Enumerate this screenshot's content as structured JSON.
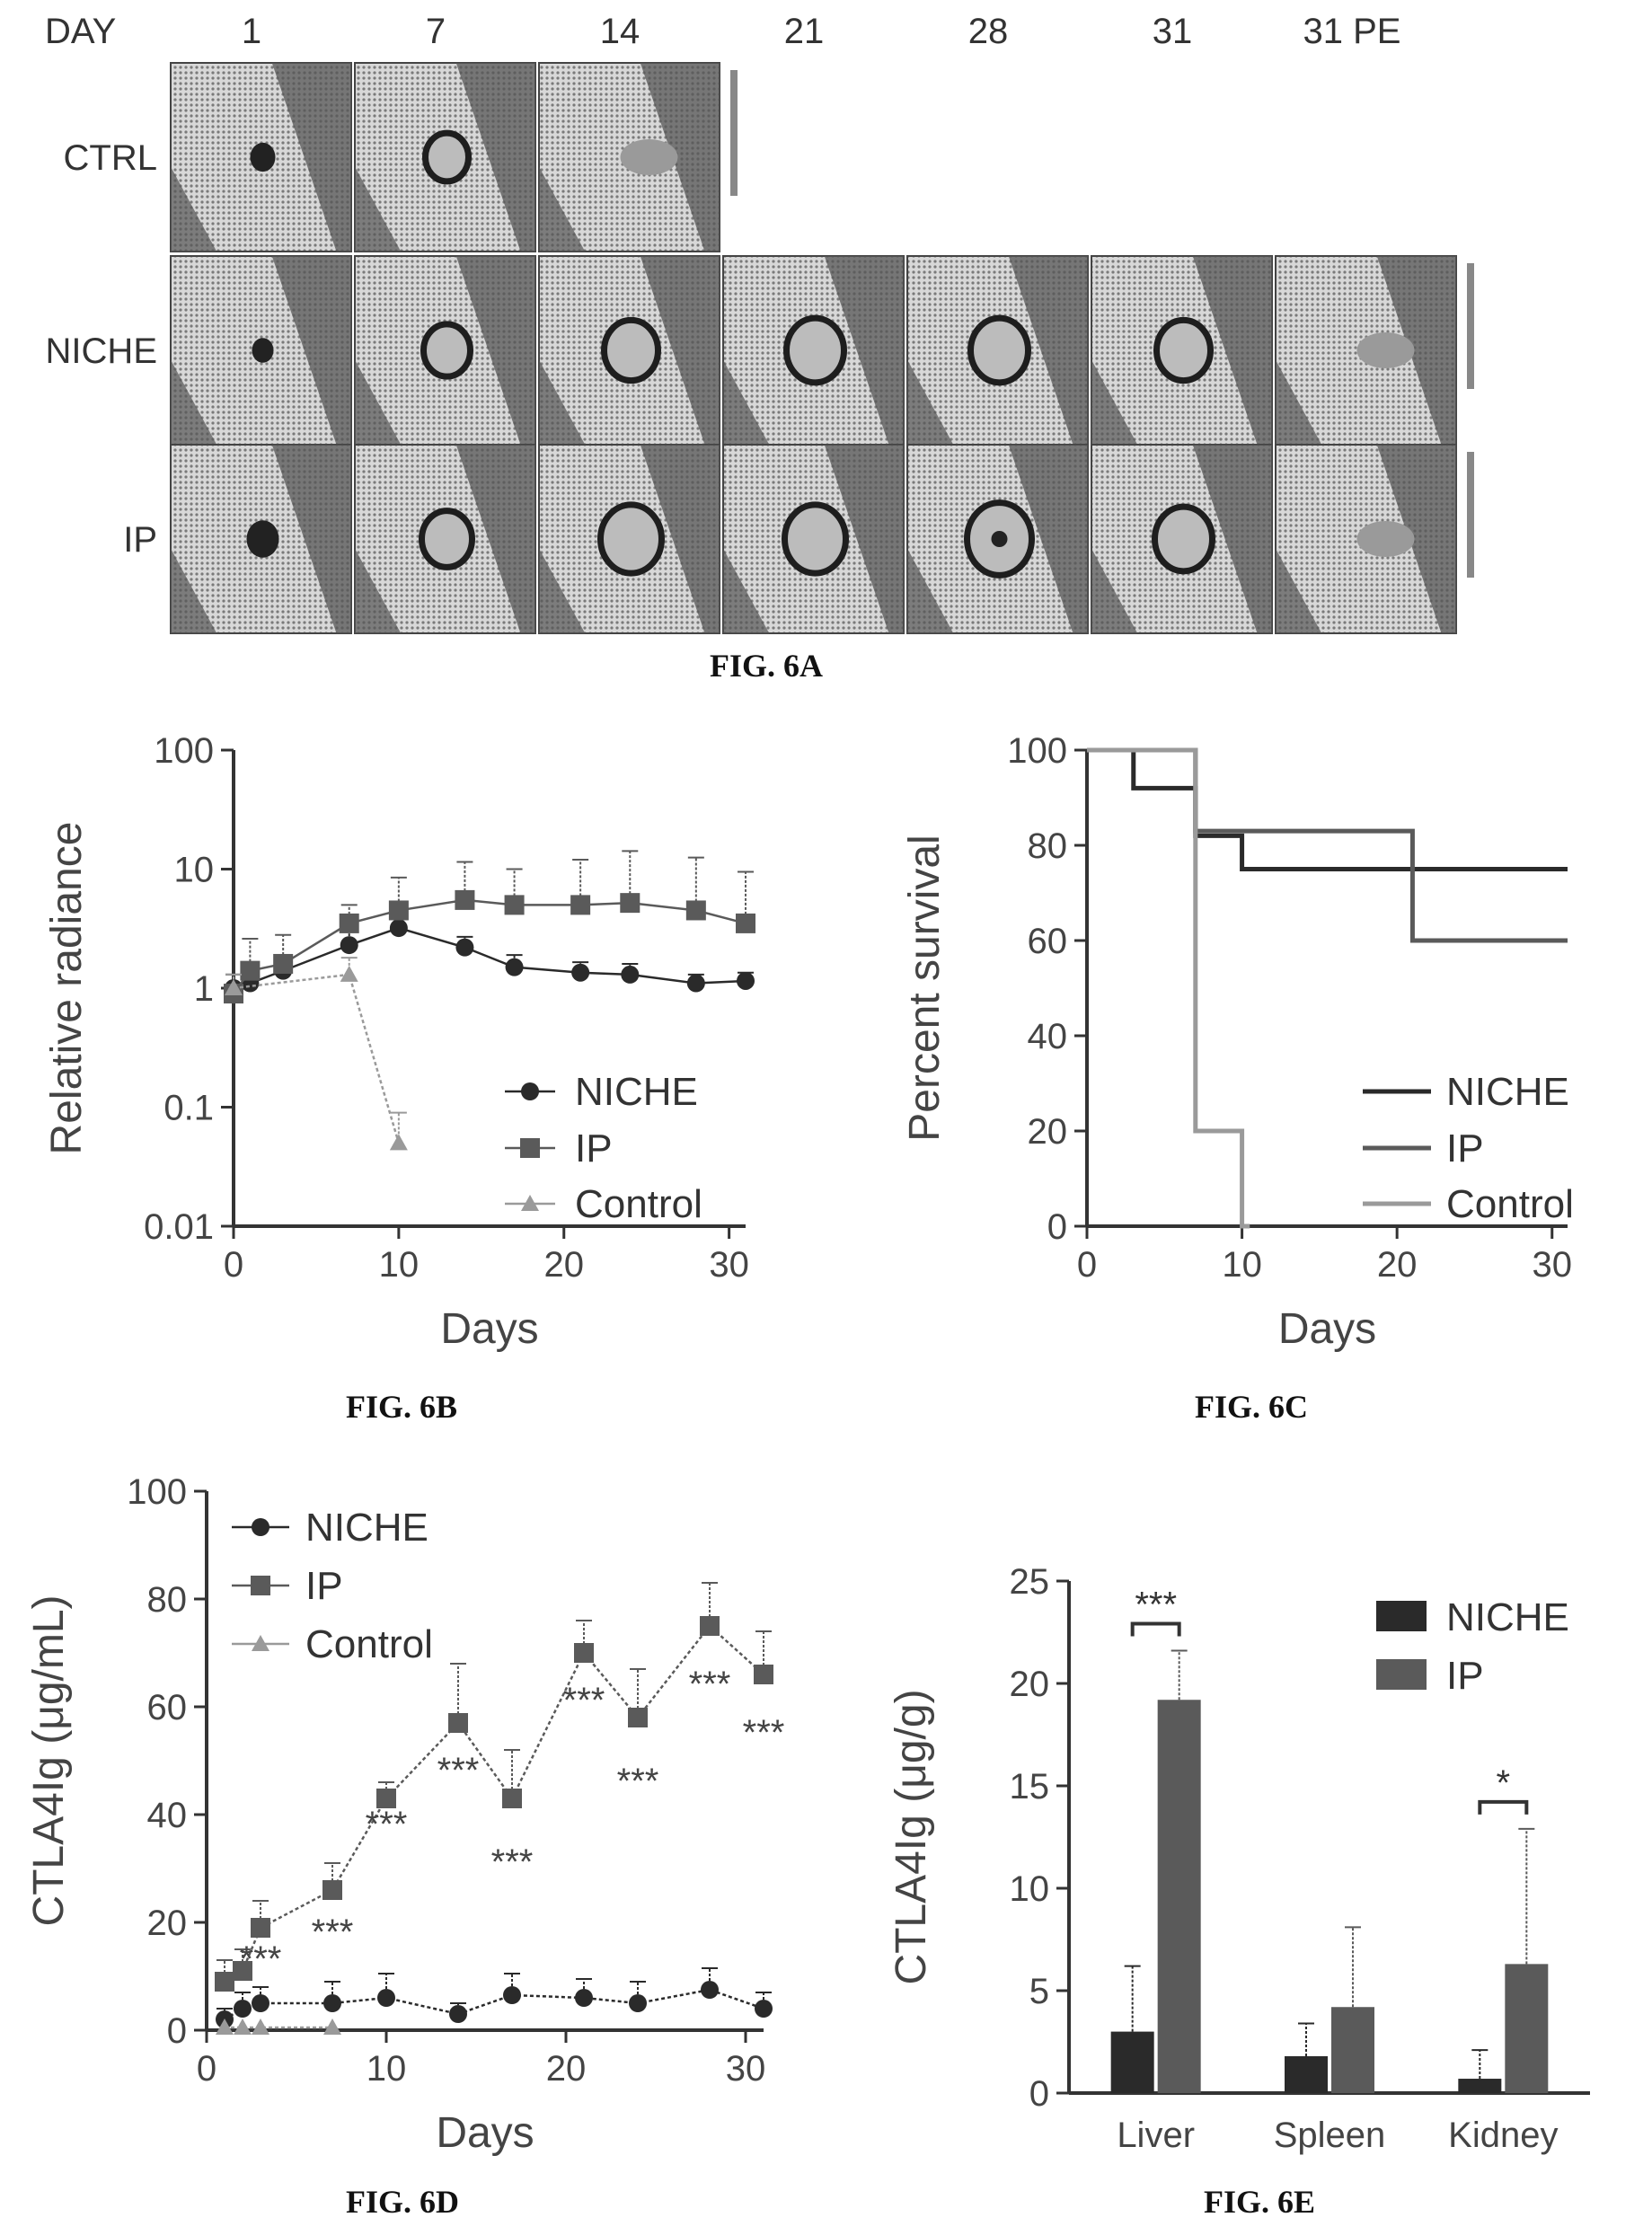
{
  "fig6a": {
    "day_label": "DAY",
    "days": [
      "1",
      "7",
      "14",
      "21",
      "28",
      "31",
      "31 PE"
    ],
    "rows": [
      {
        "label": "CTRL",
        "panels": 3
      },
      {
        "label": "NICHE",
        "panels": 7
      },
      {
        "label": "IP",
        "panels": 7
      }
    ],
    "caption": "FIG. 6A"
  },
  "captions": {
    "b": "FIG. 6B",
    "c": "FIG. 6C",
    "d": "FIG. 6D",
    "e": "FIG. 6E"
  },
  "colors": {
    "niche": "#2a2a2a",
    "ip": "#5a5a5a",
    "control": "#9a9a9a"
  },
  "chart_data": [
    {
      "id": "6B",
      "type": "line",
      "scale": "log",
      "xlabel": "Days",
      "ylabel": "Relative radiance",
      "xlim": [
        0,
        31
      ],
      "ylim": [
        0.01,
        100
      ],
      "xticks": [
        "0",
        "10",
        "20",
        "30"
      ],
      "yticks": [
        "0.01",
        "0.1",
        "1",
        "10",
        "100"
      ],
      "legend": "bottom-right",
      "series": [
        {
          "name": "NICHE",
          "x": [
            0,
            1,
            3,
            7,
            10,
            14,
            17,
            21,
            24,
            28,
            31
          ],
          "y": [
            1,
            1.1,
            1.4,
            2.3,
            3.2,
            2.2,
            1.5,
            1.35,
            1.3,
            1.1,
            1.15
          ],
          "err": [
            0.3,
            0.4,
            0.5,
            1.2,
            1.5,
            0.5,
            0.4,
            0.3,
            0.3,
            0.2,
            0.2
          ]
        },
        {
          "name": "IP",
          "x": [
            0,
            1,
            3,
            7,
            10,
            14,
            17,
            21,
            24,
            28,
            31
          ],
          "y": [
            0.9,
            1.4,
            1.6,
            3.5,
            4.5,
            5.5,
            5,
            5,
            5.2,
            4.5,
            3.5
          ],
          "err": [
            0.4,
            1.2,
            1.2,
            1.5,
            4,
            6,
            5,
            7,
            9,
            8,
            6
          ]
        },
        {
          "name": "Control",
          "x": [
            0,
            7,
            10
          ],
          "y": [
            1,
            1.3,
            0.05
          ],
          "err": [
            0.3,
            0.5,
            0.04
          ]
        }
      ]
    },
    {
      "id": "6C",
      "type": "line",
      "xlabel": "Days",
      "ylabel": "Percent survival",
      "xlim": [
        0,
        31
      ],
      "ylim": [
        0,
        100
      ],
      "xticks": [
        "0",
        "10",
        "20",
        "30"
      ],
      "yticks": [
        "0",
        "20",
        "40",
        "60",
        "80",
        "100"
      ],
      "legend": "bottom-right",
      "series": [
        {
          "name": "NICHE",
          "x": [
            0,
            3,
            7,
            10,
            21,
            31
          ],
          "y": [
            100,
            92,
            82,
            75,
            75,
            75
          ]
        },
        {
          "name": "IP",
          "x": [
            0,
            7,
            21,
            31
          ],
          "y": [
            100,
            83,
            60,
            60
          ]
        },
        {
          "name": "Control",
          "x": [
            0,
            7,
            10,
            10.5
          ],
          "y": [
            100,
            20,
            0,
            0
          ]
        }
      ]
    },
    {
      "id": "6D",
      "type": "line",
      "xlabel": "Days",
      "ylabel": "CTLA4Ig (μg/mL)",
      "xlim": [
        0,
        31
      ],
      "ylim": [
        0,
        100
      ],
      "xticks": [
        "0",
        "10",
        "20",
        "30"
      ],
      "yticks": [
        "0",
        "20",
        "40",
        "60",
        "80",
        "100"
      ],
      "legend": "top-left",
      "series": [
        {
          "name": "NICHE",
          "x": [
            1,
            2,
            3,
            7,
            10,
            14,
            17,
            21,
            24,
            28,
            31
          ],
          "y": [
            2,
            4,
            5,
            5,
            6,
            3,
            6.5,
            6,
            5,
            7.5,
            4
          ],
          "err": [
            2,
            3,
            3,
            4,
            4.5,
            2,
            4,
            3.5,
            4,
            4,
            3
          ]
        },
        {
          "name": "IP",
          "x": [
            1,
            2,
            3,
            7,
            10,
            14,
            17,
            21,
            24,
            28,
            31
          ],
          "y": [
            9,
            11,
            19,
            26,
            43,
            57,
            43,
            70,
            58,
            75,
            66
          ],
          "err": [
            4,
            4,
            5,
            5,
            3,
            11,
            9,
            6,
            9,
            8,
            8
          ]
        },
        {
          "name": "Control",
          "x": [
            1,
            2,
            3,
            7
          ],
          "y": [
            0.5,
            0.5,
            0.5,
            0.5
          ],
          "err": [
            0,
            0,
            0,
            0
          ]
        }
      ],
      "annotations": [
        {
          "x": 3,
          "y": 11,
          "text": "***"
        },
        {
          "x": 7,
          "y": 16,
          "text": "***"
        },
        {
          "x": 10,
          "y": 36,
          "text": "***"
        },
        {
          "x": 14,
          "y": 46,
          "text": "***"
        },
        {
          "x": 17,
          "y": 29,
          "text": "***"
        },
        {
          "x": 21,
          "y": 59,
          "text": "***"
        },
        {
          "x": 24,
          "y": 44,
          "text": "***"
        },
        {
          "x": 28,
          "y": 62,
          "text": "***"
        },
        {
          "x": 31,
          "y": 53,
          "text": "***"
        }
      ]
    },
    {
      "id": "6E",
      "type": "bar",
      "ylabel": "CTLA4Ig (μg/g)",
      "categories": [
        "Liver",
        "Spleen",
        "Kidney"
      ],
      "ylim": [
        0,
        25
      ],
      "yticks": [
        "0",
        "5",
        "10",
        "15",
        "20",
        "25"
      ],
      "legend": "top-right",
      "series": [
        {
          "name": "NICHE",
          "values": [
            3,
            1.8,
            0.7
          ],
          "err": [
            3.2,
            1.6,
            1.4
          ]
        },
        {
          "name": "IP",
          "values": [
            19.2,
            4.2,
            6.3
          ],
          "err": [
            2.4,
            3.9,
            6.6
          ]
        }
      ],
      "significance": [
        {
          "category": "Liver",
          "text": "***"
        },
        {
          "category": "Kidney",
          "text": "*"
        }
      ]
    }
  ]
}
